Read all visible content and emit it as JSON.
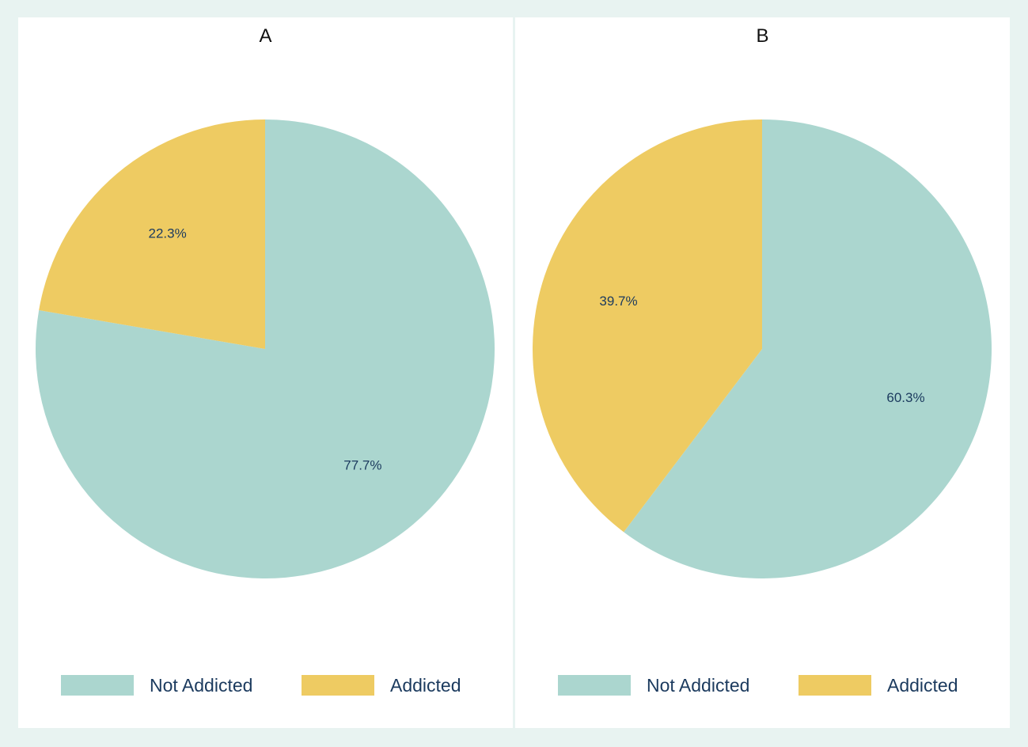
{
  "colors": {
    "not_addicted": "#abd6cf",
    "addicted": "#eecb62",
    "label": "#1b3a5e",
    "title": "#111111"
  },
  "chart_data": [
    {
      "type": "pie",
      "title": "A",
      "slices": [
        {
          "label": "Not Addicted",
          "value": 77.7,
          "value_label": "77.7%",
          "color": "#abd6cf"
        },
        {
          "label": "Addicted",
          "value": 22.3,
          "value_label": "22.3%",
          "color": "#eecb62"
        }
      ],
      "legend": {
        "placement": "bottom",
        "entries": [
          "Not Addicted",
          "Addicted"
        ]
      }
    },
    {
      "type": "pie",
      "title": "B",
      "slices": [
        {
          "label": "Not Addicted",
          "value": 60.3,
          "value_label": "60.3%",
          "color": "#abd6cf"
        },
        {
          "label": "Addicted",
          "value": 39.7,
          "value_label": "39.7%",
          "color": "#eecb62"
        }
      ],
      "legend": {
        "placement": "bottom",
        "entries": [
          "Not Addicted",
          "Addicted"
        ]
      }
    }
  ]
}
